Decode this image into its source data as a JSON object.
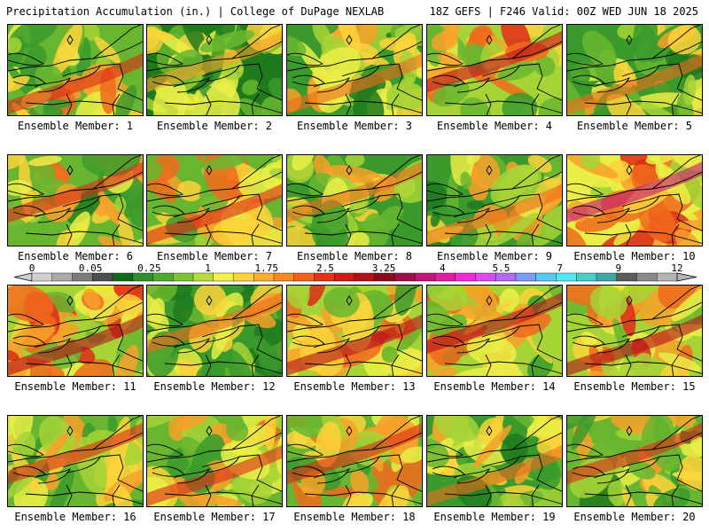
{
  "header": {
    "left": "Precipitation Accumulation (in.) | College of DuPage NEXLAB",
    "right": "18Z GEFS | F246 Valid: 00Z WED JUN 18 2025"
  },
  "panels": [
    {
      "label": "Ensemble Member: 1",
      "intensity": 0.35
    },
    {
      "label": "Ensemble Member: 2",
      "intensity": 0.15
    },
    {
      "label": "Ensemble Member: 3",
      "intensity": 0.25
    },
    {
      "label": "Ensemble Member: 4",
      "intensity": 0.55
    },
    {
      "label": "Ensemble Member: 5",
      "intensity": 0.25
    },
    {
      "label": "Ensemble Member: 6",
      "intensity": 0.35
    },
    {
      "label": "Ensemble Member: 7",
      "intensity": 0.45
    },
    {
      "label": "Ensemble Member: 8",
      "intensity": 0.2
    },
    {
      "label": "Ensemble Member: 9",
      "intensity": 0.3
    },
    {
      "label": "Ensemble Member: 10",
      "intensity": 0.7
    },
    {
      "label": "Ensemble Member: 11",
      "intensity": 0.6
    },
    {
      "label": "Ensemble Member: 12",
      "intensity": 0.25
    },
    {
      "label": "Ensemble Member: 13",
      "intensity": 0.55
    },
    {
      "label": "Ensemble Member: 14",
      "intensity": 0.5
    },
    {
      "label": "Ensemble Member: 15",
      "intensity": 0.55
    },
    {
      "label": "Ensemble Member: 16",
      "intensity": 0.35
    },
    {
      "label": "Ensemble Member: 17",
      "intensity": 0.45
    },
    {
      "label": "Ensemble Member: 18",
      "intensity": 0.45
    },
    {
      "label": "Ensemble Member: 19",
      "intensity": 0.3
    },
    {
      "label": "Ensemble Member: 20",
      "intensity": 0.35
    }
  ],
  "colorbar": {
    "labels": [
      "0",
      "0.05",
      "0.25",
      "1",
      "1.75",
      "2.5",
      "3.25",
      "4",
      "5.5",
      "7",
      "9",
      "12"
    ],
    "colors": [
      "#d0d0d0",
      "#a9a9a9",
      "#7c7c7c",
      "#4e4e4e",
      "#0e6a17",
      "#2f8f2a",
      "#4faa2d",
      "#7dc534",
      "#b8dc3c",
      "#f3f24a",
      "#fcd33a",
      "#fbb02d",
      "#f7891f",
      "#f26117",
      "#e63315",
      "#d01a14",
      "#b3101a",
      "#8b0a1a",
      "#a01048",
      "#c3157a",
      "#e11ba6",
      "#f229d7",
      "#d94aef",
      "#b469f2",
      "#7b9cf5",
      "#59c9f4",
      "#4ee9f2",
      "#45cfc8",
      "#3ea8a2",
      "#5a5a5a",
      "#8a8a8a",
      "#b5b5b5"
    ]
  }
}
